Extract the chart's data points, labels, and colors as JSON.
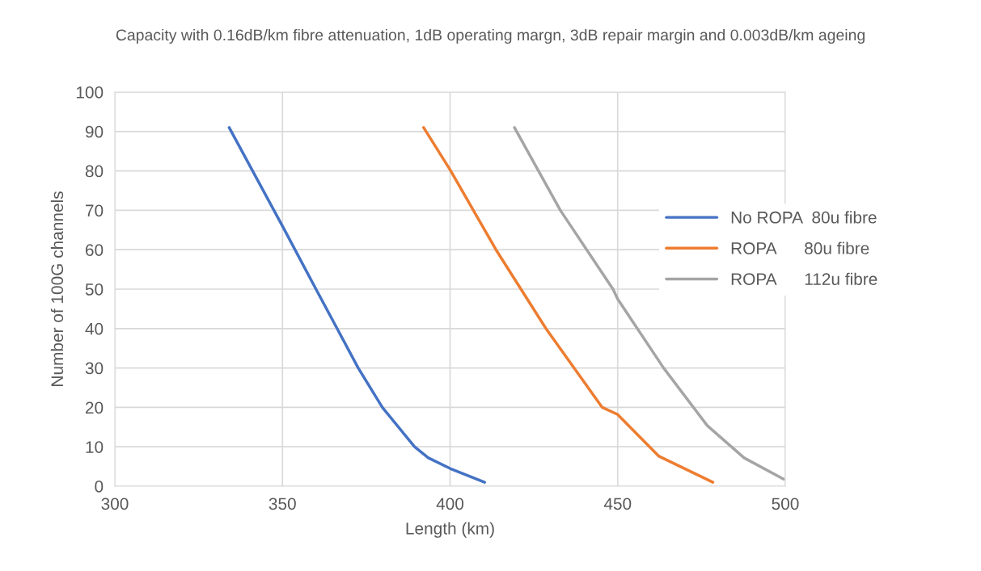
{
  "chart_data": {
    "type": "line",
    "title": "Capacity with 0.16dB/km fibre attenuation, 1dB operating margn, 3dB repair margin and 0.003dB/km ageing",
    "xlabel": "Length (km)",
    "ylabel": "Number of 100G channels",
    "xlim": [
      300,
      500
    ],
    "xticks": [
      300,
      350,
      400,
      450,
      500
    ],
    "ylim": [
      0,
      100
    ],
    "yticks": [
      0,
      10,
      20,
      30,
      40,
      50,
      60,
      70,
      80,
      90,
      100
    ],
    "grid": true,
    "legend": "right",
    "marker": "none",
    "line_style": "solid",
    "series": [
      {
        "name": "No ROPA  80u fibre",
        "color": "#4472c4",
        "x": [
          334.1,
          350,
          360,
          366.3,
          372.6,
          379.8,
          389.4,
          393.5,
          400,
          410.3
        ],
        "values": [
          91,
          66,
          50,
          40,
          30,
          20,
          10,
          7.2,
          4.5,
          1
        ]
      },
      {
        "name": "ROPA      80u fibre",
        "color": "#ed7d31",
        "x": [
          392.1,
          400,
          413.7,
          428.6,
          445.4,
          450,
          462.3,
          478.4
        ],
        "values": [
          91,
          80.3,
          60,
          40,
          20,
          18.2,
          7.6,
          1
        ]
      },
      {
        "name": "ROPA      112u fibre",
        "color": "#a5a5a5",
        "x": [
          419.2,
          432.9,
          448.6,
          450,
          463.7,
          476.7,
          487.7,
          499.5
        ],
        "values": [
          91,
          70,
          50,
          47.5,
          30,
          15.4,
          7.2,
          1.8
        ]
      }
    ]
  }
}
